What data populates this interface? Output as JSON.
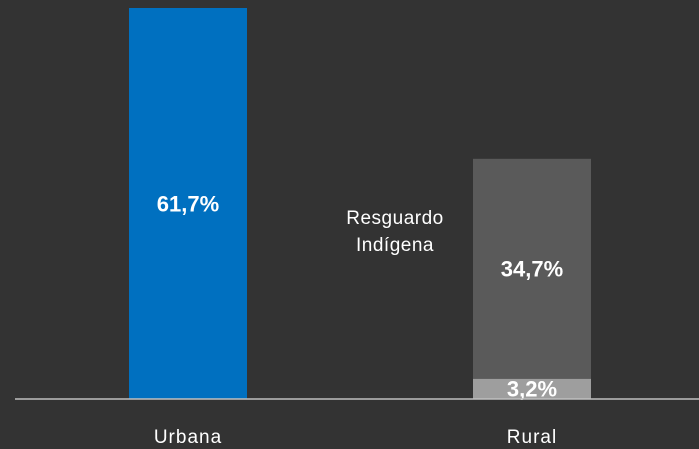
{
  "chart_data": {
    "type": "stacked_bar",
    "categories": [
      "Urbana",
      "Rural"
    ],
    "series": [
      {
        "color": "#0070c0",
        "values": [
          61.7,
          null
        ],
        "value_labels": [
          "61,7%",
          null
        ]
      },
      {
        "color": "#9e9e9e",
        "values": [
          null,
          3.2
        ],
        "value_labels": [
          null,
          "3,2%"
        ]
      },
      {
        "color": "#5a5a5a",
        "values": [
          null,
          34.7
        ],
        "value_labels": [
          null,
          "34,7%"
        ]
      }
    ],
    "annotations": [
      {
        "lines": [
          "Resguardo",
          "Indígena"
        ]
      }
    ],
    "ylim": [
      0,
      61.7
    ],
    "axis_color": "#bfbfbf"
  }
}
